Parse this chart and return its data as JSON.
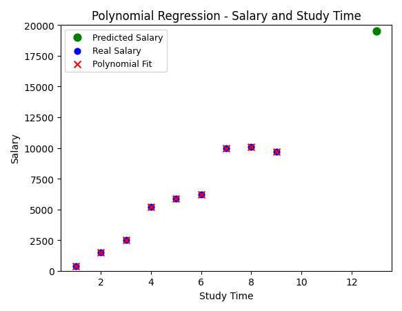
{
  "title": "Polynomial Regression - Salary and Study Time",
  "xlabel": "Study Time",
  "ylabel": "Salary",
  "real_salary_x": [
    1,
    2,
    3,
    4,
    5,
    6,
    7,
    8,
    9
  ],
  "real_salary_y": [
    400,
    1500,
    2500,
    5200,
    5900,
    6200,
    10000,
    10100,
    9700
  ],
  "poly_fit_x": [
    1,
    2,
    3,
    4,
    5,
    6,
    7,
    8,
    9
  ],
  "poly_fit_y": [
    400,
    1500,
    2500,
    5200,
    5900,
    6200,
    10000,
    10100,
    9700
  ],
  "predicted_x": [
    13
  ],
  "predicted_y": [
    19500
  ],
  "real_salary_color": "blue",
  "poly_fit_color": "red",
  "predicted_color": "green",
  "ylim": [
    0,
    20000
  ],
  "xlim_auto": true,
  "real_salary_marker": "o",
  "poly_fit_marker": "x",
  "predicted_marker": "o",
  "real_salary_size": 40,
  "poly_fit_size": 50,
  "poly_fit_linewidths": 1.5,
  "predicted_size": 60,
  "legend_labels": [
    "Predicted Salary",
    "Real Salary",
    "Polynomial Fit"
  ],
  "background_color": "white",
  "title_fontsize": 12,
  "axis_label_fontsize": 10,
  "figwidth": 5.83,
  "figheight": 4.52,
  "dpi": 100
}
